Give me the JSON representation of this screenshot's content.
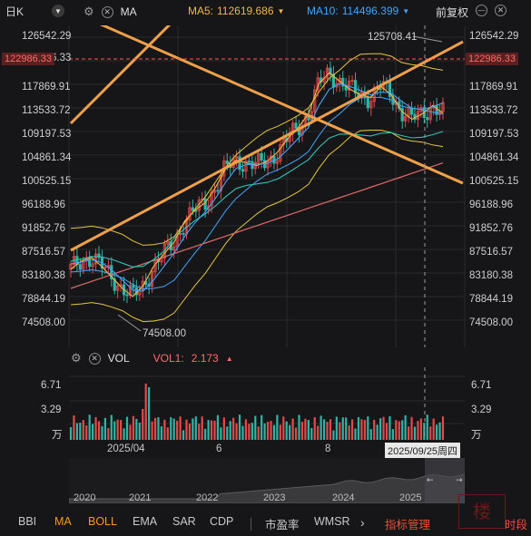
{
  "header": {
    "period": "日K",
    "indicator": "MA",
    "ma5_label": "MA5:",
    "ma5_value": "112619.686",
    "ma10_label": "MA10:",
    "ma10_value": "114496.399",
    "adjust": "前复权"
  },
  "price_axis": {
    "labels": [
      "126542.29",
      "122986.33",
      "117869.91",
      "113533.72",
      "109197.53",
      "104861.34",
      "100525.15",
      "96188.96",
      "91852.76",
      "87516.57",
      "83180.38",
      "78844.19",
      "74508.00"
    ],
    "current": "122986.33",
    "high_annotation": "125708.41",
    "low_annotation": "74508.00"
  },
  "volume": {
    "indicator": "VOL",
    "vol1_label": "VOL1:",
    "vol1_value": "2.173",
    "axis_left": [
      "6.71",
      "3.29",
      "万"
    ],
    "axis_right": [
      "6.71",
      "3.29",
      "万"
    ]
  },
  "time_axis": {
    "labels": [
      "2025/04",
      "6",
      "8"
    ],
    "hover_date": "2025/09/25周四"
  },
  "overview_axis": {
    "years": [
      "2020",
      "2021",
      "2022",
      "2023",
      "2024",
      "2025"
    ]
  },
  "tabs": [
    {
      "label": "BBI"
    },
    {
      "label": "MA"
    },
    {
      "label": "BOLL"
    },
    {
      "label": "EMA"
    },
    {
      "label": "SAR"
    },
    {
      "label": "CDP"
    },
    {
      "label": "市盈率"
    },
    {
      "label": "WMSR"
    },
    {
      "label": "指标管理"
    },
    {
      "label": "时段"
    }
  ],
  "colors": {
    "up": "#e24a4a",
    "down": "#2fb5a8",
    "ma5": "#f3b646",
    "ma10": "#3ea6ff",
    "trendline": "#f0a04b",
    "active_tab": "#f39b1a"
  },
  "chart_data": {
    "type": "line",
    "ylim": [
      74508.0,
      126542.29
    ],
    "series": [
      {
        "name": "MA5",
        "values": [
          84000,
          85500,
          86200,
          84500,
          82500,
          80500,
          79000,
          81000,
          84500,
          86800,
          89000,
          92800,
          94800,
          96200,
          99000,
          102500,
          104000,
          103500,
          103000,
          103800,
          105500,
          108000,
          110000,
          112500,
          118000,
          120000,
          118500,
          117000,
          116000,
          115500,
          117500,
          116000,
          113000,
          111500,
          112500,
          114000,
          112619.686
        ]
      },
      {
        "name": "MA10",
        "values": [
          85000,
          85300,
          85800,
          85200,
          83800,
          82000,
          80200,
          80000,
          82000,
          84500,
          87000,
          90000,
          92500,
          94500,
          97000,
          100000,
          102500,
          103200,
          103300,
          103400,
          104200,
          106000,
          108000,
          110000,
          114000,
          117000,
          118000,
          117500,
          116800,
          116000,
          116500,
          116300,
          114800,
          113500,
          113300,
          113800,
          114496.399
        ]
      }
    ]
  }
}
